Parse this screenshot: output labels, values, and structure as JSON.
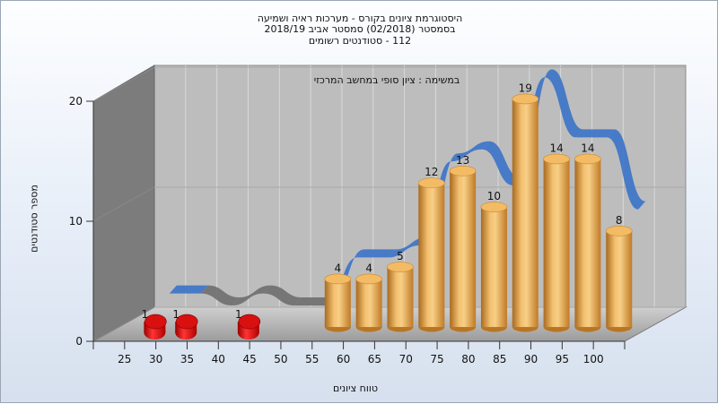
{
  "chart_data": {
    "type": "bar",
    "title_lines": [
      "היסטוגרמת ציונים בקורס - מערכות ראיה ושמיעה",
      "בסמסטר  (02/2018)  סמסטר אביב 2018/19",
      "112 - סטודנטים רשומים"
    ],
    "annotation": "במשימה : ציון סופי במחשב המרכזי",
    "xlabel": "טווח ציונים",
    "ylabel": "מספר סטודנטים",
    "ylim": [
      0,
      20
    ],
    "yticks": [
      0,
      10,
      20
    ],
    "grid": true,
    "categories": [
      "25",
      "30",
      "35",
      "40",
      "45",
      "50",
      "55",
      "60",
      "65",
      "70",
      "75",
      "80",
      "85",
      "90",
      "95",
      "100"
    ],
    "values": [
      1,
      1,
      0,
      1,
      0,
      0,
      4,
      4,
      5,
      12,
      13,
      10,
      19,
      14,
      14,
      8
    ],
    "colors": {
      "low": "#e01010",
      "high": "#e8a448",
      "ribbon": "#3d74c8",
      "ribbon_low": "#707070"
    }
  }
}
